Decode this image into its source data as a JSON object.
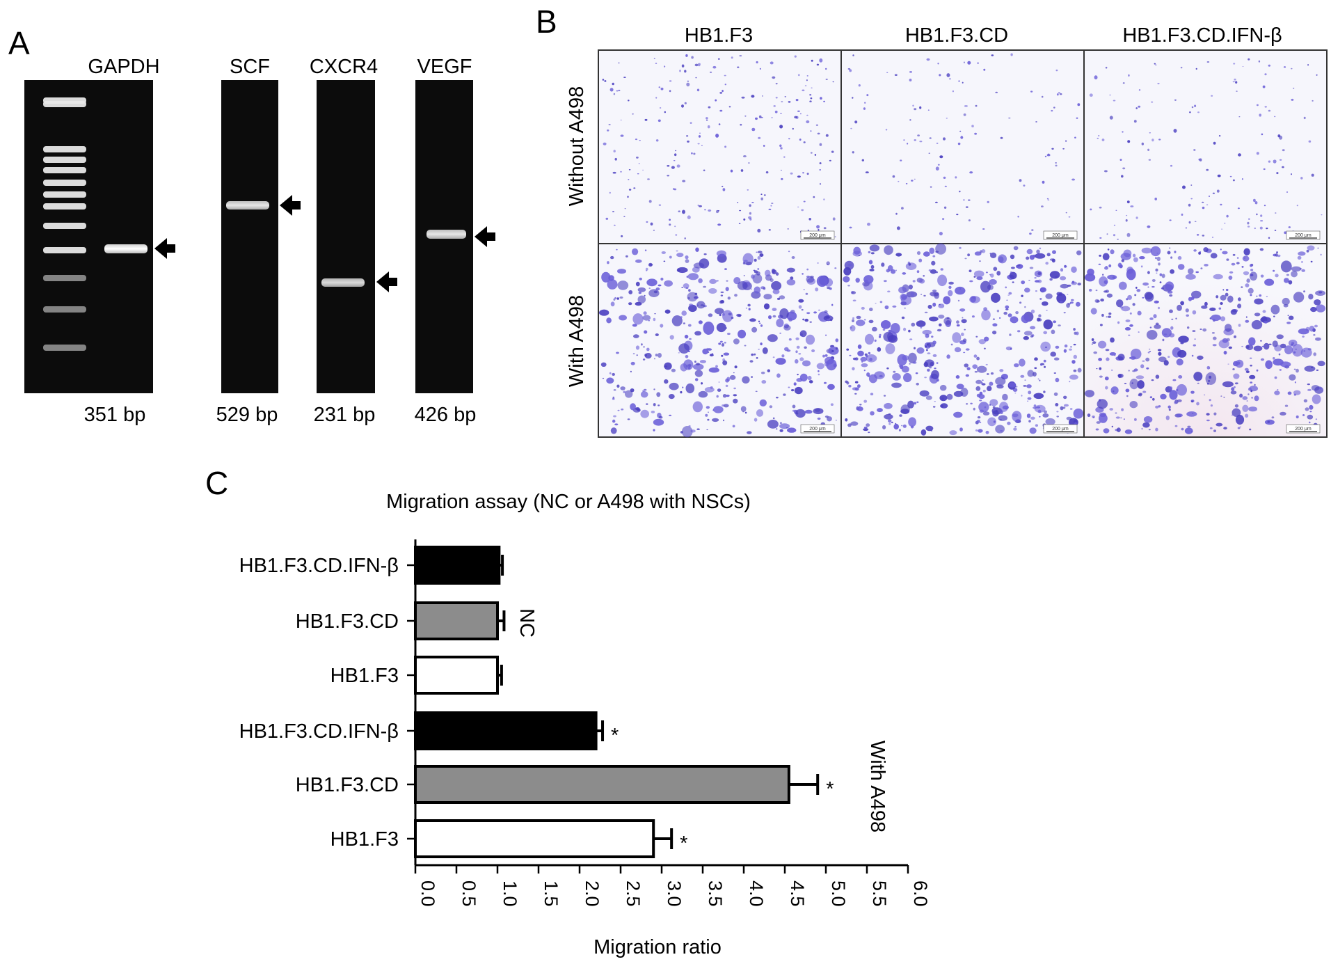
{
  "panel_a": {
    "letter": "A",
    "gels": [
      {
        "label": "GAPDH",
        "size": "351 bp",
        "band": 0.53
      },
      {
        "label": "SCF",
        "size": "529 bp",
        "band": 0.39
      },
      {
        "label": "CXCR4",
        "size": "231 bp",
        "band": 0.64
      },
      {
        "label": "VEGF",
        "size": "426 bp",
        "band": 0.49
      }
    ]
  },
  "panel_b": {
    "letter": "B",
    "columns": [
      "HB1.F3",
      "HB1.F3.CD",
      "HB1.F3.CD.IFN-β"
    ],
    "rows": [
      "Without A498",
      "With A498"
    ],
    "scale_bar": "200 μm",
    "density": [
      [
        0.35,
        0.12,
        0.18
      ],
      [
        0.75,
        0.95,
        0.85
      ]
    ]
  },
  "panel_c": {
    "letter": "C"
  },
  "chart_data": {
    "type": "bar",
    "orientation": "horizontal",
    "title": "Migration assay (NC or A498 with NSCs)",
    "xlabel": "Migration ratio",
    "ylabel": "",
    "xlim": [
      0.0,
      6.0
    ],
    "xticks": [
      "0.0",
      "0.5",
      "1.0",
      "1.5",
      "2.0",
      "2.5",
      "3.0",
      "3.5",
      "4.0",
      "4.5",
      "5.0",
      "5.5",
      "6.0"
    ],
    "categories": [
      "HB1.F3.CD.IFN-β",
      "HB1.F3.CD",
      "HB1.F3",
      "HB1.F3.CD.IFN-β",
      "HB1.F3.CD",
      "HB1.F3"
    ],
    "values": [
      1.02,
      1.0,
      1.0,
      2.2,
      4.55,
      2.9
    ],
    "errors": [
      0.04,
      0.08,
      0.05,
      0.08,
      0.35,
      0.22
    ],
    "fills": [
      "#000000",
      "#8c8c8c",
      "#ffffff",
      "#000000",
      "#8c8c8c",
      "#ffffff"
    ],
    "significance": [
      "",
      "",
      "",
      "*",
      "*",
      "*"
    ],
    "groups": [
      {
        "label": "NC",
        "start": 0,
        "end": 2
      },
      {
        "label": "With A498",
        "start": 3,
        "end": 5
      }
    ]
  }
}
